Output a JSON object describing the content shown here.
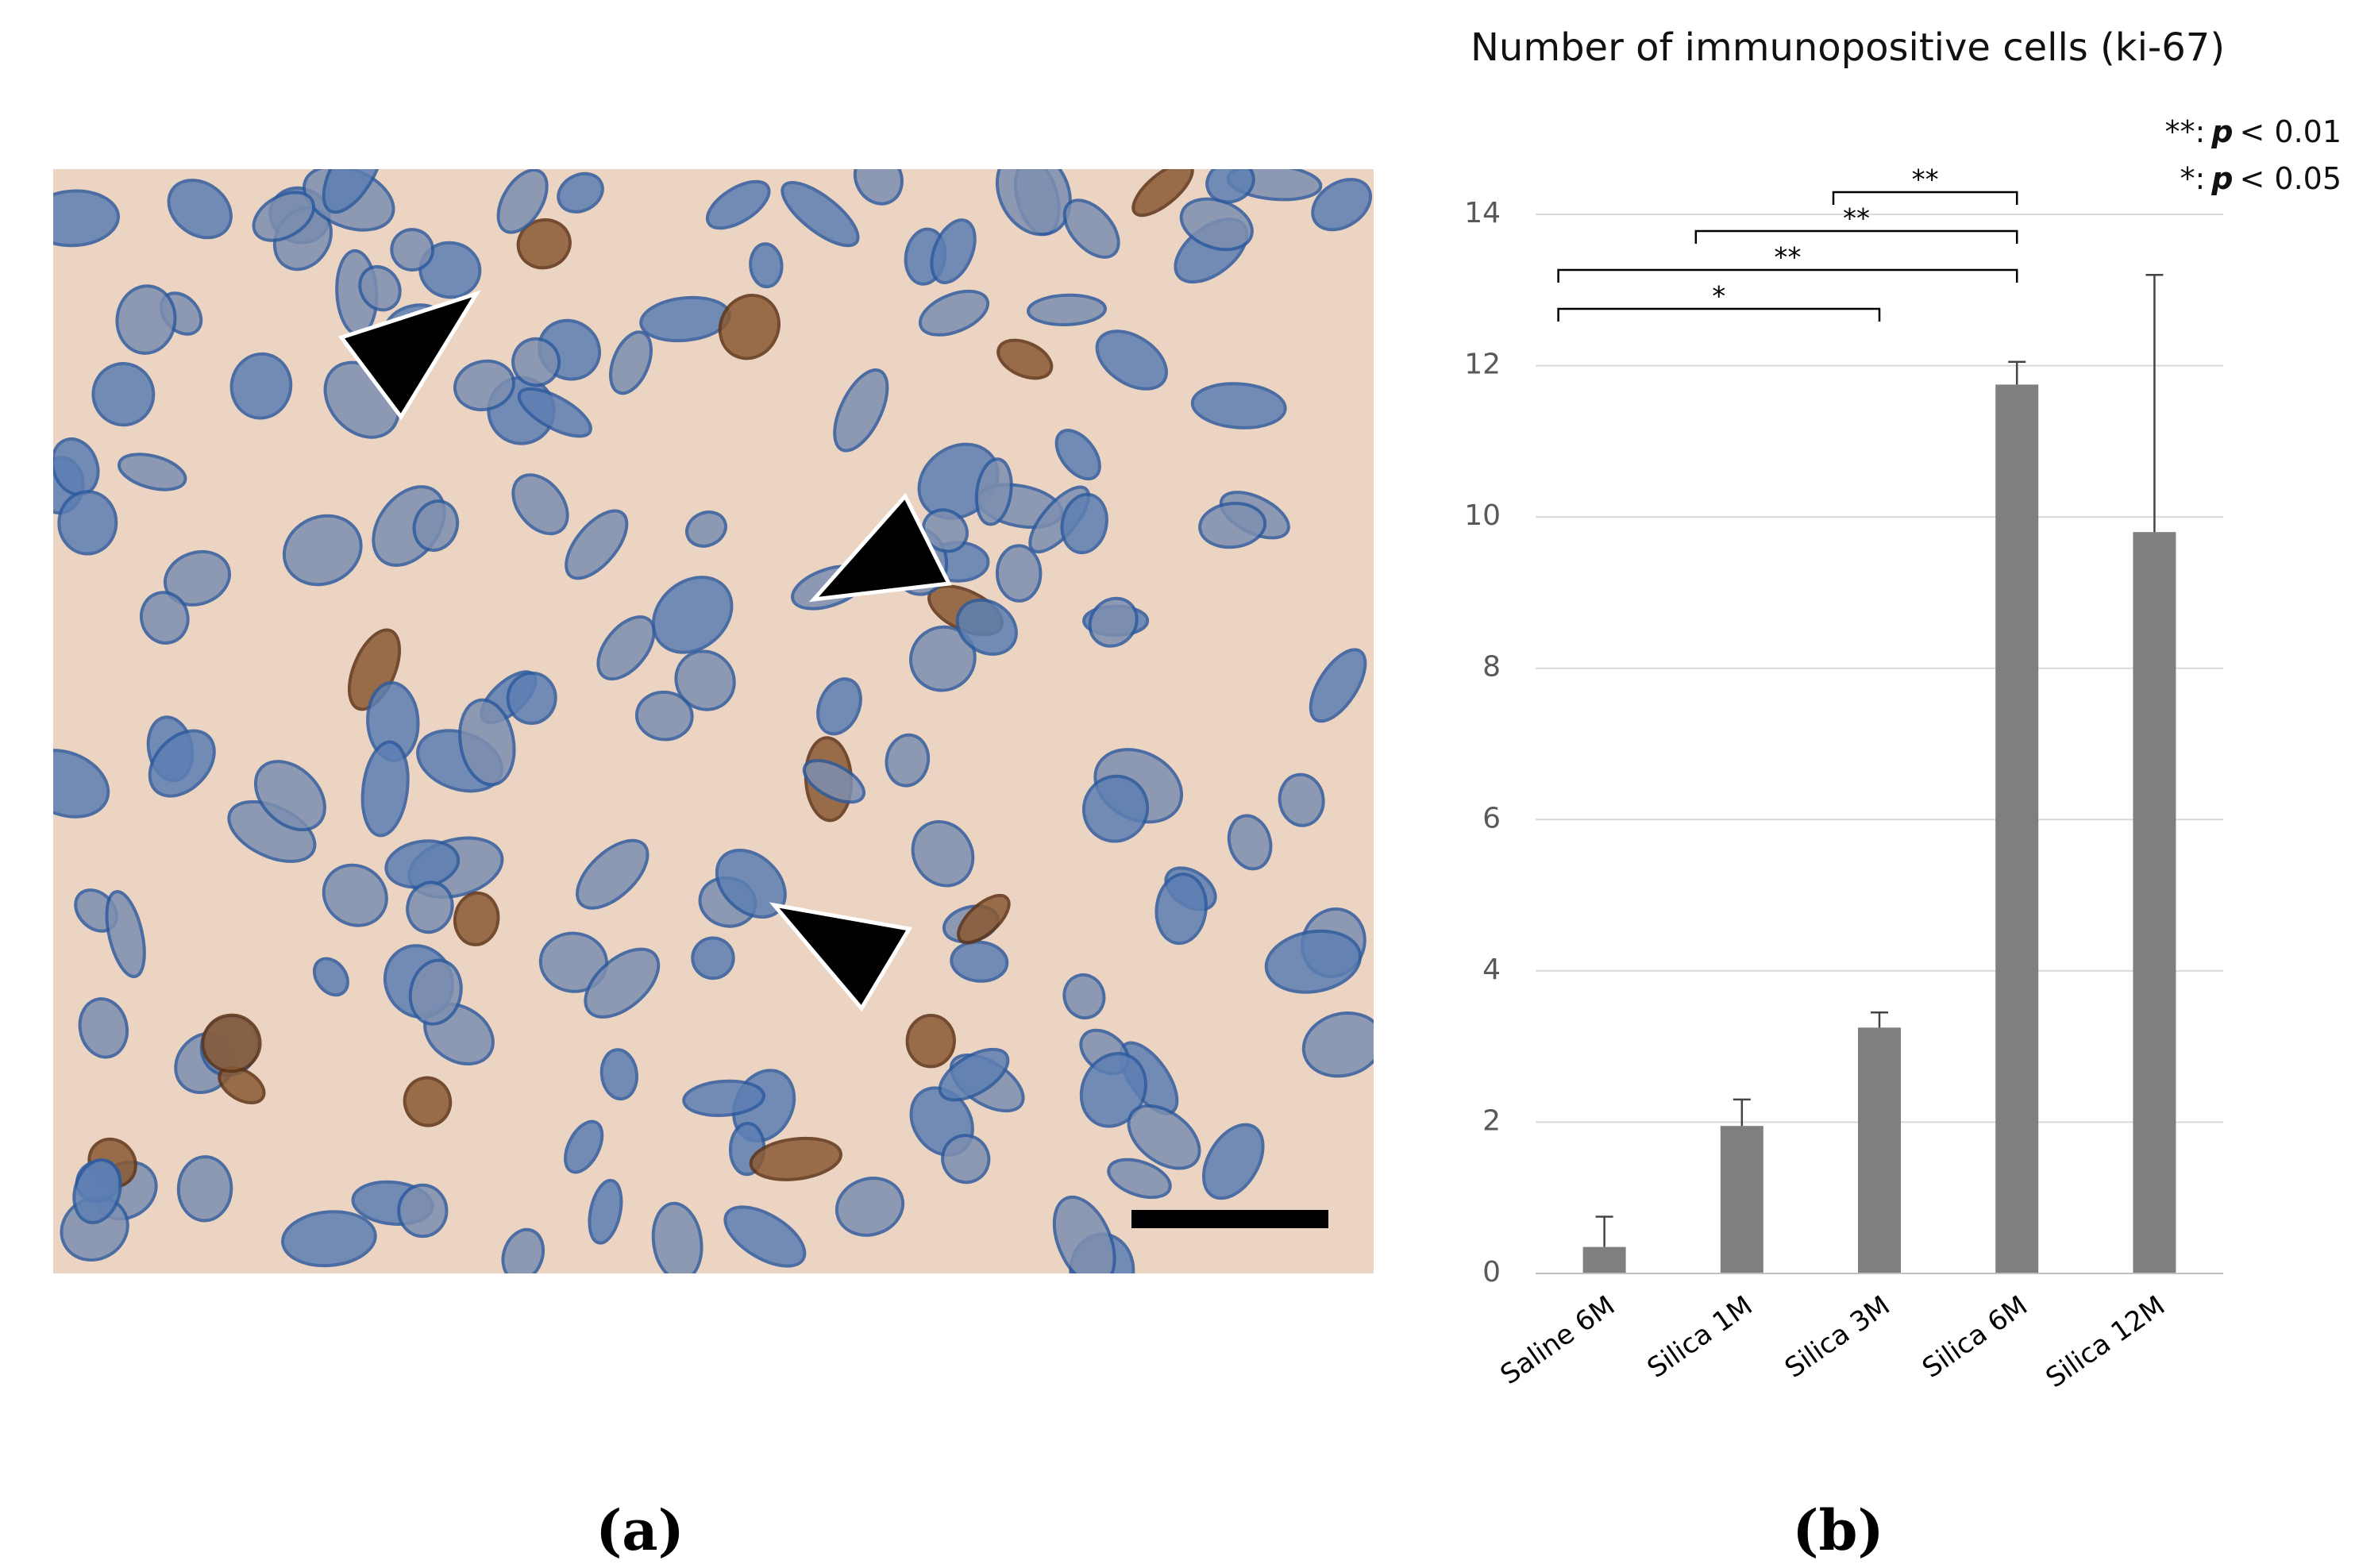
{
  "panels": [
    {
      "label": "(a)"
    },
    {
      "label": "(b)",
      "chart_data": {
        "type": "bar",
        "title": "Number of immunopositive cells (ki-67)",
        "categories": [
          "Saline 6M",
          "Silica 1M",
          "Silica 3M",
          "Silica 6M",
          "Silica 12M"
        ],
        "values": [
          0.35,
          1.95,
          3.25,
          11.75,
          9.8
        ],
        "errors": [
          0.4,
          0.35,
          0.2,
          0.3,
          3.4
        ],
        "color": "#7f7f7f",
        "ylim": [
          0,
          14
        ],
        "yticks": [
          0,
          2,
          4,
          6,
          8,
          10,
          12,
          14
        ],
        "grid": true,
        "brackets": [
          {
            "from": "Saline 6M",
            "to": "Silica 3M",
            "label": "*"
          },
          {
            "from": "Saline 6M",
            "to": "Silica 6M",
            "label": "**"
          },
          {
            "from": "Silica 1M",
            "to": "Silica 6M",
            "label": "**"
          },
          {
            "from": "Silica 3M",
            "to": "Silica 6M",
            "label": "**"
          }
        ],
        "notes": [
          {
            "stars": "**:",
            "p": "p",
            "rest": "< 0.01"
          },
          {
            "stars": "*:",
            "p": "p",
            "rest": "< 0.05"
          }
        ]
      }
    }
  ]
}
